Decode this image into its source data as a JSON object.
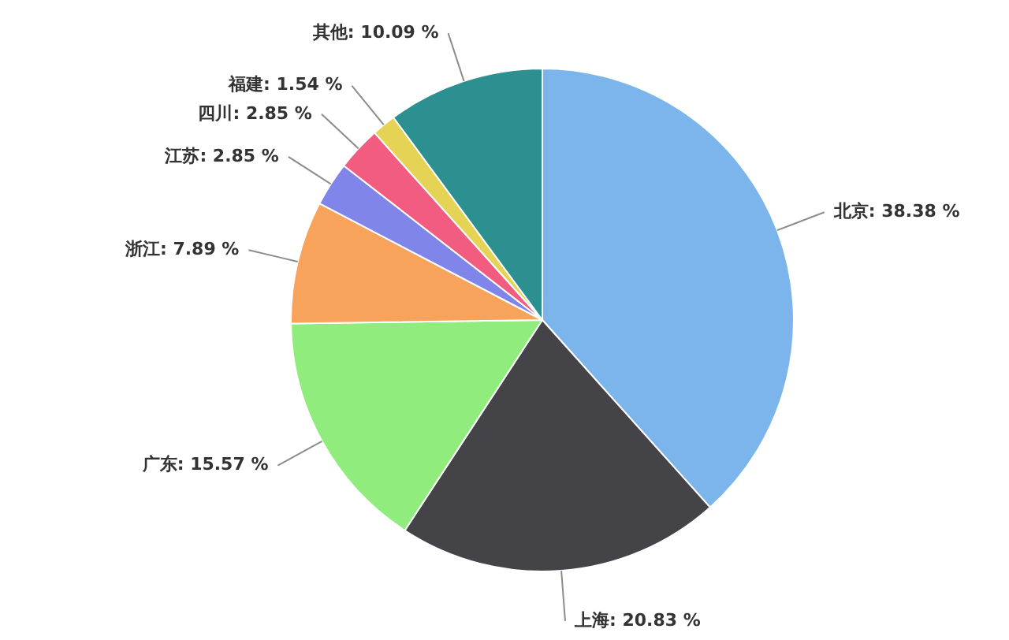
{
  "chart_data": {
    "type": "pie",
    "categories": [
      "北京",
      "上海",
      "广东",
      "浙江",
      "江苏",
      "四川",
      "福建",
      "其他"
    ],
    "values": [
      38.38,
      20.83,
      15.57,
      7.89,
      2.85,
      2.85,
      1.54,
      10.09
    ],
    "value_labels": [
      "38.38 %",
      "20.83 %",
      "15.57 %",
      "7.89 %",
      "2.85 %",
      "2.85 %",
      "1.54 %",
      "10.09 %"
    ],
    "colors": [
      "#7cb5ec",
      "#434348",
      "#90ed7d",
      "#f7a35c",
      "#8085e9",
      "#f15c80",
      "#e4d354",
      "#2b908f"
    ]
  }
}
